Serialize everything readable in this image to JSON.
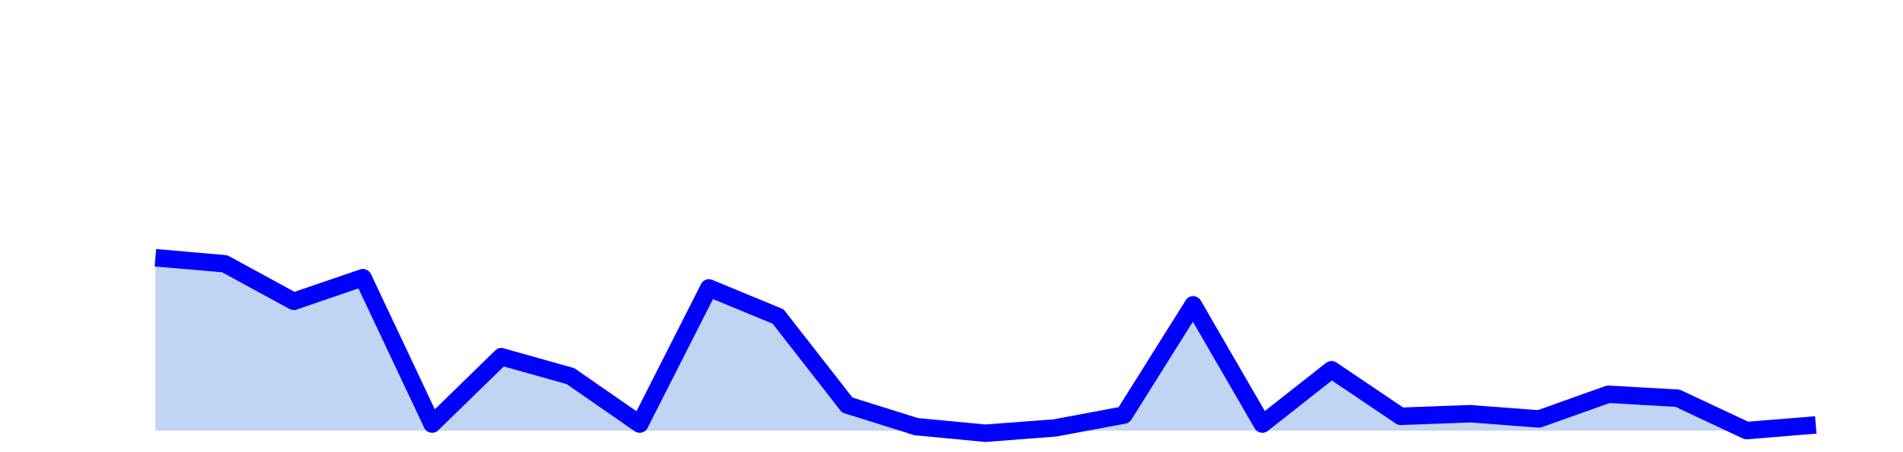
{
  "colors": {
    "background": "#ffffff",
    "line": "#0000ff",
    "area_fill": "#c2d4f3"
  },
  "chart_data": {
    "type": "area",
    "title": "",
    "xlabel": "",
    "ylabel": "",
    "grid": false,
    "legend": "none",
    "x": [
      1,
      2,
      3,
      4,
      5,
      6,
      7,
      8,
      9,
      10,
      11,
      12,
      13,
      14,
      15,
      16,
      17,
      18,
      19,
      20,
      21,
      22,
      23,
      24,
      25
    ],
    "ylim": [
      0,
      100
    ],
    "series": [
      {
        "values": [
          40,
          38.6,
          29.9,
          35.4,
          1.5,
          17.1,
          12.6,
          1.5,
          33,
          26.4,
          5.9,
          0.9,
          -0.6,
          0.6,
          3.6,
          29.1,
          1.5,
          14.1,
          3.3,
          3.9,
          2.7,
          8.4,
          7.5,
          0,
          1.3
        ]
      }
    ]
  }
}
